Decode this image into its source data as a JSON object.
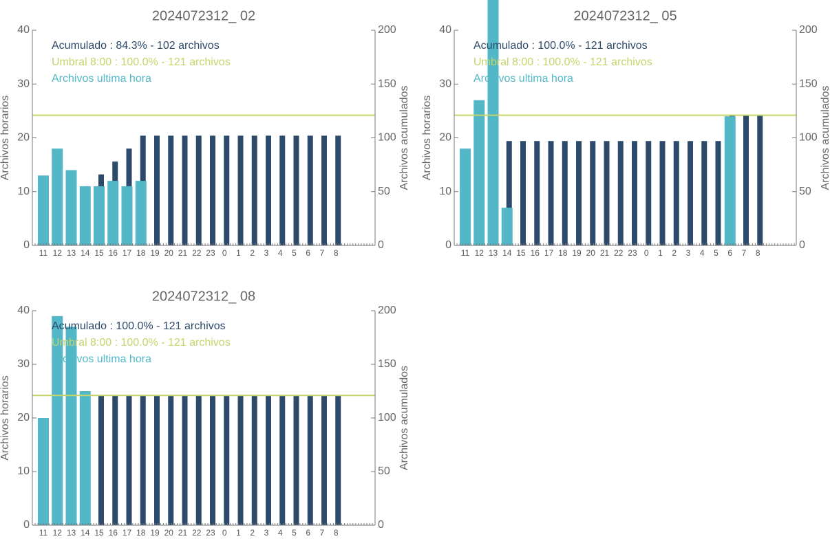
{
  "chart_data": [
    {
      "type": "bar",
      "title": "2024072312_ 02",
      "ylabel": "Archivos horarios",
      "y2label": "Archivos acumulados",
      "categories": [
        "11",
        "12",
        "13",
        "14",
        "15",
        "16",
        "17",
        "18",
        "19",
        "20",
        "21",
        "22",
        "23",
        "0",
        "1",
        "2",
        "3",
        "4",
        "5",
        "6",
        "7",
        "8"
      ],
      "series": [
        {
          "name": "Acumulado : 84.3% - 102 archivos",
          "color": "#2d4a6b",
          "axis": "y2",
          "values": [
            10,
            29,
            44,
            55,
            66,
            78,
            90,
            102,
            102,
            102,
            102,
            102,
            102,
            102,
            102,
            102,
            102,
            102,
            102,
            102,
            102,
            102
          ]
        },
        {
          "name": "Archivos ultima hora",
          "color": "#52b8c8",
          "values": [
            13,
            18,
            14,
            11,
            11,
            12,
            11,
            12,
            null,
            null,
            null,
            null,
            null,
            null,
            null,
            null,
            null,
            null,
            null,
            null,
            null,
            null
          ]
        }
      ],
      "threshold": {
        "label": "Umbral 8:00 : 100.0% - 121 archivos",
        "value": 121,
        "color": "#c5d46a",
        "axis": "y2"
      },
      "ylim": [
        0,
        40
      ],
      "yticks": [
        0,
        10,
        20,
        30,
        40
      ],
      "y2lim": [
        0,
        200
      ],
      "y2ticks": [
        0,
        50,
        100,
        150,
        200
      ]
    },
    {
      "type": "bar",
      "title": "2024072312_ 05",
      "ylabel": "Archivos horarios",
      "y2label": "Archivos acumulados",
      "categories": [
        "11",
        "12",
        "13",
        "14",
        "15",
        "16",
        "17",
        "18",
        "19",
        "20",
        "21",
        "22",
        "23",
        "0",
        "1",
        "2",
        "3",
        "4",
        "5",
        "6",
        "7",
        "8"
      ],
      "series": [
        {
          "name": "Acumulado : 100.0% - 121 archivos",
          "color": "#2d4a6b",
          "axis": "y2",
          "values": [
            15,
            43,
            90,
            97,
            97,
            97,
            97,
            97,
            97,
            97,
            97,
            97,
            97,
            97,
            97,
            97,
            97,
            97,
            97,
            121,
            121,
            121
          ]
        },
        {
          "name": "Archivos ultima hora",
          "color": "#52b8c8",
          "values": [
            18,
            27,
            46,
            7,
            null,
            null,
            null,
            null,
            null,
            null,
            null,
            null,
            null,
            null,
            null,
            null,
            null,
            null,
            null,
            24,
            null,
            null
          ]
        }
      ],
      "threshold": {
        "label": "Umbral 8:00 : 100.0% - 121 archivos",
        "value": 121,
        "color": "#c5d46a",
        "axis": "y2"
      },
      "ylim": [
        0,
        40
      ],
      "yticks": [
        0,
        10,
        20,
        30,
        40
      ],
      "y2lim": [
        0,
        200
      ],
      "y2ticks": [
        0,
        50,
        100,
        150,
        200
      ]
    },
    {
      "type": "bar",
      "title": "2024072312_ 08",
      "ylabel": "Archivos horarios",
      "y2label": "Archivos acumulados",
      "categories": [
        "11",
        "12",
        "13",
        "14",
        "15",
        "16",
        "17",
        "18",
        "19",
        "20",
        "21",
        "22",
        "23",
        "0",
        "1",
        "2",
        "3",
        "4",
        "5",
        "6",
        "7",
        "8"
      ],
      "series": [
        {
          "name": "Acumulado : 100.0% - 121 archivos",
          "color": "#2d4a6b",
          "axis": "y2",
          "values": [
            17,
            57,
            96,
            121,
            121,
            121,
            121,
            121,
            121,
            121,
            121,
            121,
            121,
            121,
            121,
            121,
            121,
            121,
            121,
            121,
            121,
            121
          ]
        },
        {
          "name": "Archivos ultima hora",
          "color": "#52b8c8",
          "values": [
            20,
            39,
            37,
            25,
            null,
            null,
            null,
            null,
            null,
            null,
            null,
            null,
            null,
            null,
            null,
            null,
            null,
            null,
            null,
            null,
            null,
            null
          ]
        }
      ],
      "threshold": {
        "label": "Umbral 8:00 : 100.0% - 121 archivos",
        "value": 121,
        "color": "#c5d46a",
        "axis": "y2"
      },
      "ylim": [
        0,
        40
      ],
      "yticks": [
        0,
        10,
        20,
        30,
        40
      ],
      "y2lim": [
        0,
        200
      ],
      "y2ticks": [
        0,
        50,
        100,
        150,
        200
      ]
    }
  ]
}
